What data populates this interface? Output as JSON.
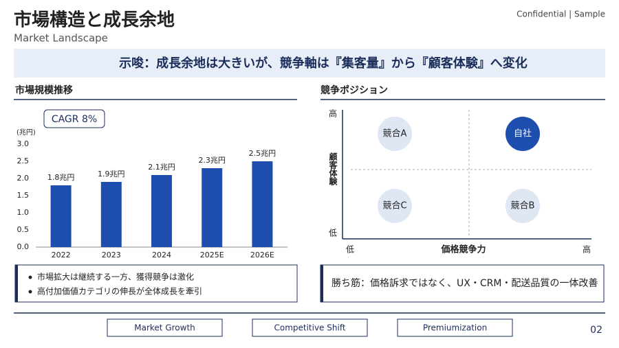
{
  "header": {
    "title": "市場構造と成長余地",
    "subtitle": "Market Landscape",
    "confidential": "Confidential | Sample"
  },
  "banner": "示唆：成長余地は大きいが、競争軸は『集客量』から『顧客体験』へ変化",
  "left": {
    "heading": "市場規模推移",
    "badge": "CAGR 8%",
    "chart_data": {
      "type": "bar",
      "ylabel": "(兆円)",
      "categories": [
        "2022",
        "2023",
        "2024",
        "2025E",
        "2026E"
      ],
      "values": [
        1.8,
        1.9,
        2.1,
        2.3,
        2.5
      ],
      "value_labels": [
        "1.8兆円",
        "1.9兆円",
        "2.1兆円",
        "2.3兆円",
        "2.5兆円"
      ],
      "color": "#1f4fae",
      "ylim": [
        0,
        3
      ],
      "yticks": [
        {
          "value": 0,
          "label": "0.0"
        },
        0.5,
        {
          "value": 1,
          "label": "1.0"
        },
        1.5,
        {
          "value": 2,
          "label": "2.0"
        },
        2.5,
        {
          "value": 3,
          "label": "3.0"
        }
      ],
      "grid": false
    },
    "bullets": [
      "市場拡大は継続する一方、獲得競争は激化",
      "高付加価値カテゴリの伸長が全体成長を牽引"
    ]
  },
  "right": {
    "heading": "競争ポジション",
    "y_high": "高",
    "y_low": "低",
    "y_label": "顧客体験",
    "x_low": "低",
    "x_label": "価格競争力",
    "x_high": "高",
    "nodes": [
      {
        "label": "競合A"
      },
      {
        "label": "自社"
      },
      {
        "label": "競合C"
      },
      {
        "label": "競合B"
      }
    ],
    "conclusion": "勝ち筋：価格訴求ではなく、UX・CRM・配送品質の一体改善"
  },
  "footer": {
    "tabs": [
      "Market Growth",
      "Competitive Shift",
      "Premiumization"
    ],
    "page": "02"
  }
}
